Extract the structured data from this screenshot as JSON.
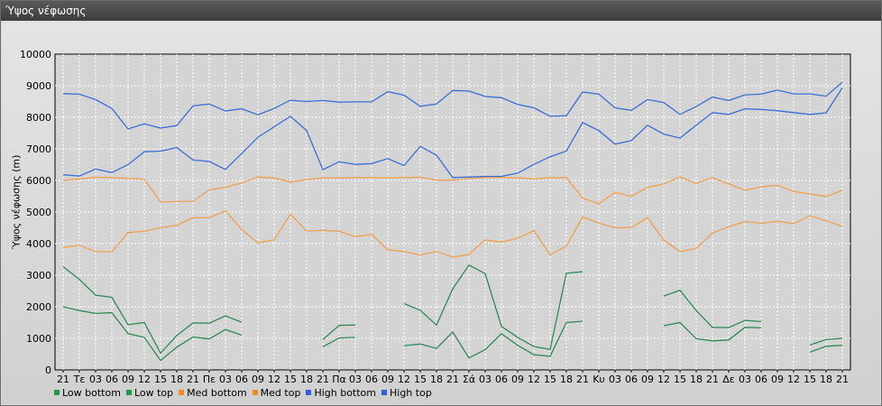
{
  "window": {
    "title": "Ύψος νέφωσης"
  },
  "chart_data": {
    "type": "line",
    "ylabel": "Ύψος νέφωσης (m)",
    "ylim": [
      0,
      10000
    ],
    "yticks": [
      0,
      1000,
      2000,
      3000,
      4000,
      5000,
      6000,
      7000,
      8000,
      9000,
      10000
    ],
    "grid": true,
    "legend": "bottom-left",
    "x": [
      "21",
      "Τε",
      "03",
      "06",
      "09",
      "12",
      "15",
      "18",
      "21",
      "Πε",
      "03",
      "06",
      "09",
      "12",
      "15",
      "18",
      "21",
      "Πα",
      "03",
      "06",
      "09",
      "12",
      "15",
      "18",
      "21",
      "Σά",
      "03",
      "06",
      "09",
      "12",
      "15",
      "18",
      "21",
      "Κυ",
      "03",
      "06",
      "09",
      "12",
      "15",
      "18",
      "21",
      "Δε",
      "03",
      "06",
      "09",
      "12",
      "15",
      "18",
      "21"
    ],
    "series": [
      {
        "name": "Low bottom",
        "color": "#2e8b57",
        "values": [
          2000,
          1880,
          1790,
          1810,
          1150,
          1030,
          300,
          720,
          1040,
          980,
          1280,
          1100,
          null,
          null,
          null,
          null,
          730,
          1010,
          1030,
          null,
          null,
          770,
          820,
          680,
          1200,
          380,
          640,
          1150,
          780,
          480,
          430,
          1500,
          1540,
          null,
          null,
          null,
          null,
          1400,
          1500,
          990,
          920,
          950,
          1350,
          1330,
          null,
          null,
          560,
          750,
          780
        ]
      },
      {
        "name": "Low top",
        "color": "#2e8b57",
        "values": [
          3270,
          2870,
          2370,
          2300,
          1430,
          1500,
          530,
          1090,
          1490,
          1480,
          1710,
          1510,
          null,
          null,
          null,
          null,
          960,
          1410,
          1420,
          null,
          null,
          2100,
          1890,
          1420,
          2570,
          3320,
          3050,
          1380,
          1030,
          740,
          650,
          3060,
          3110,
          null,
          null,
          null,
          null,
          2340,
          2520,
          1880,
          1350,
          1340,
          1570,
          1530,
          null,
          null,
          790,
          960,
          1000
        ]
      },
      {
        "name": "Med bottom",
        "color": "#f0a050",
        "values": [
          3880,
          3950,
          3750,
          3740,
          4350,
          4390,
          4500,
          4580,
          4820,
          4820,
          5040,
          4450,
          4020,
          4120,
          4930,
          4400,
          4420,
          4390,
          4220,
          4290,
          3810,
          3750,
          3640,
          3750,
          3570,
          3660,
          4120,
          4050,
          4170,
          4410,
          3650,
          3920,
          4840,
          4650,
          4500,
          4510,
          4820,
          4110,
          3750,
          3850,
          4340,
          4530,
          4700,
          4640,
          4710,
          4630,
          4880,
          4720,
          4550
        ]
      },
      {
        "name": "Med top",
        "color": "#f0a050",
        "values": [
          6000,
          6050,
          6100,
          6090,
          6070,
          6040,
          5320,
          5330,
          5340,
          5700,
          5780,
          5920,
          6110,
          6080,
          5950,
          6030,
          6080,
          6080,
          6090,
          6090,
          6080,
          6090,
          6100,
          6010,
          6010,
          6060,
          6090,
          6100,
          6080,
          6050,
          6090,
          6090,
          5440,
          5260,
          5620,
          5500,
          5780,
          5890,
          6110,
          5910,
          6090,
          5890,
          5690,
          5800,
          5850,
          5650,
          5570,
          5490,
          5690
        ]
      },
      {
        "name": "High bottom",
        "color": "#3a6fd8",
        "values": [
          6180,
          6140,
          6360,
          6250,
          6500,
          6910,
          6930,
          7040,
          6650,
          6600,
          6350,
          6850,
          7370,
          7700,
          8030,
          7580,
          6340,
          6590,
          6510,
          6530,
          6690,
          6470,
          7080,
          6800,
          6090,
          6110,
          6130,
          6130,
          6230,
          6510,
          6750,
          6930,
          7830,
          7580,
          7150,
          7260,
          7750,
          7470,
          7340,
          7750,
          8150,
          8090,
          8270,
          8250,
          8210,
          8150,
          8090,
          8140,
          8930
        ]
      },
      {
        "name": "High top",
        "color": "#3a6fd8",
        "values": [
          8750,
          8730,
          8560,
          8280,
          7630,
          7790,
          7660,
          7740,
          8360,
          8420,
          8200,
          8270,
          8080,
          8280,
          8540,
          8500,
          8530,
          8480,
          8490,
          8490,
          8810,
          8700,
          8350,
          8420,
          8850,
          8830,
          8660,
          8620,
          8410,
          8300,
          8030,
          8050,
          8800,
          8730,
          8300,
          8220,
          8560,
          8470,
          8090,
          8340,
          8640,
          8530,
          8710,
          8730,
          8860,
          8740,
          8740,
          8670,
          9110
        ]
      }
    ]
  }
}
